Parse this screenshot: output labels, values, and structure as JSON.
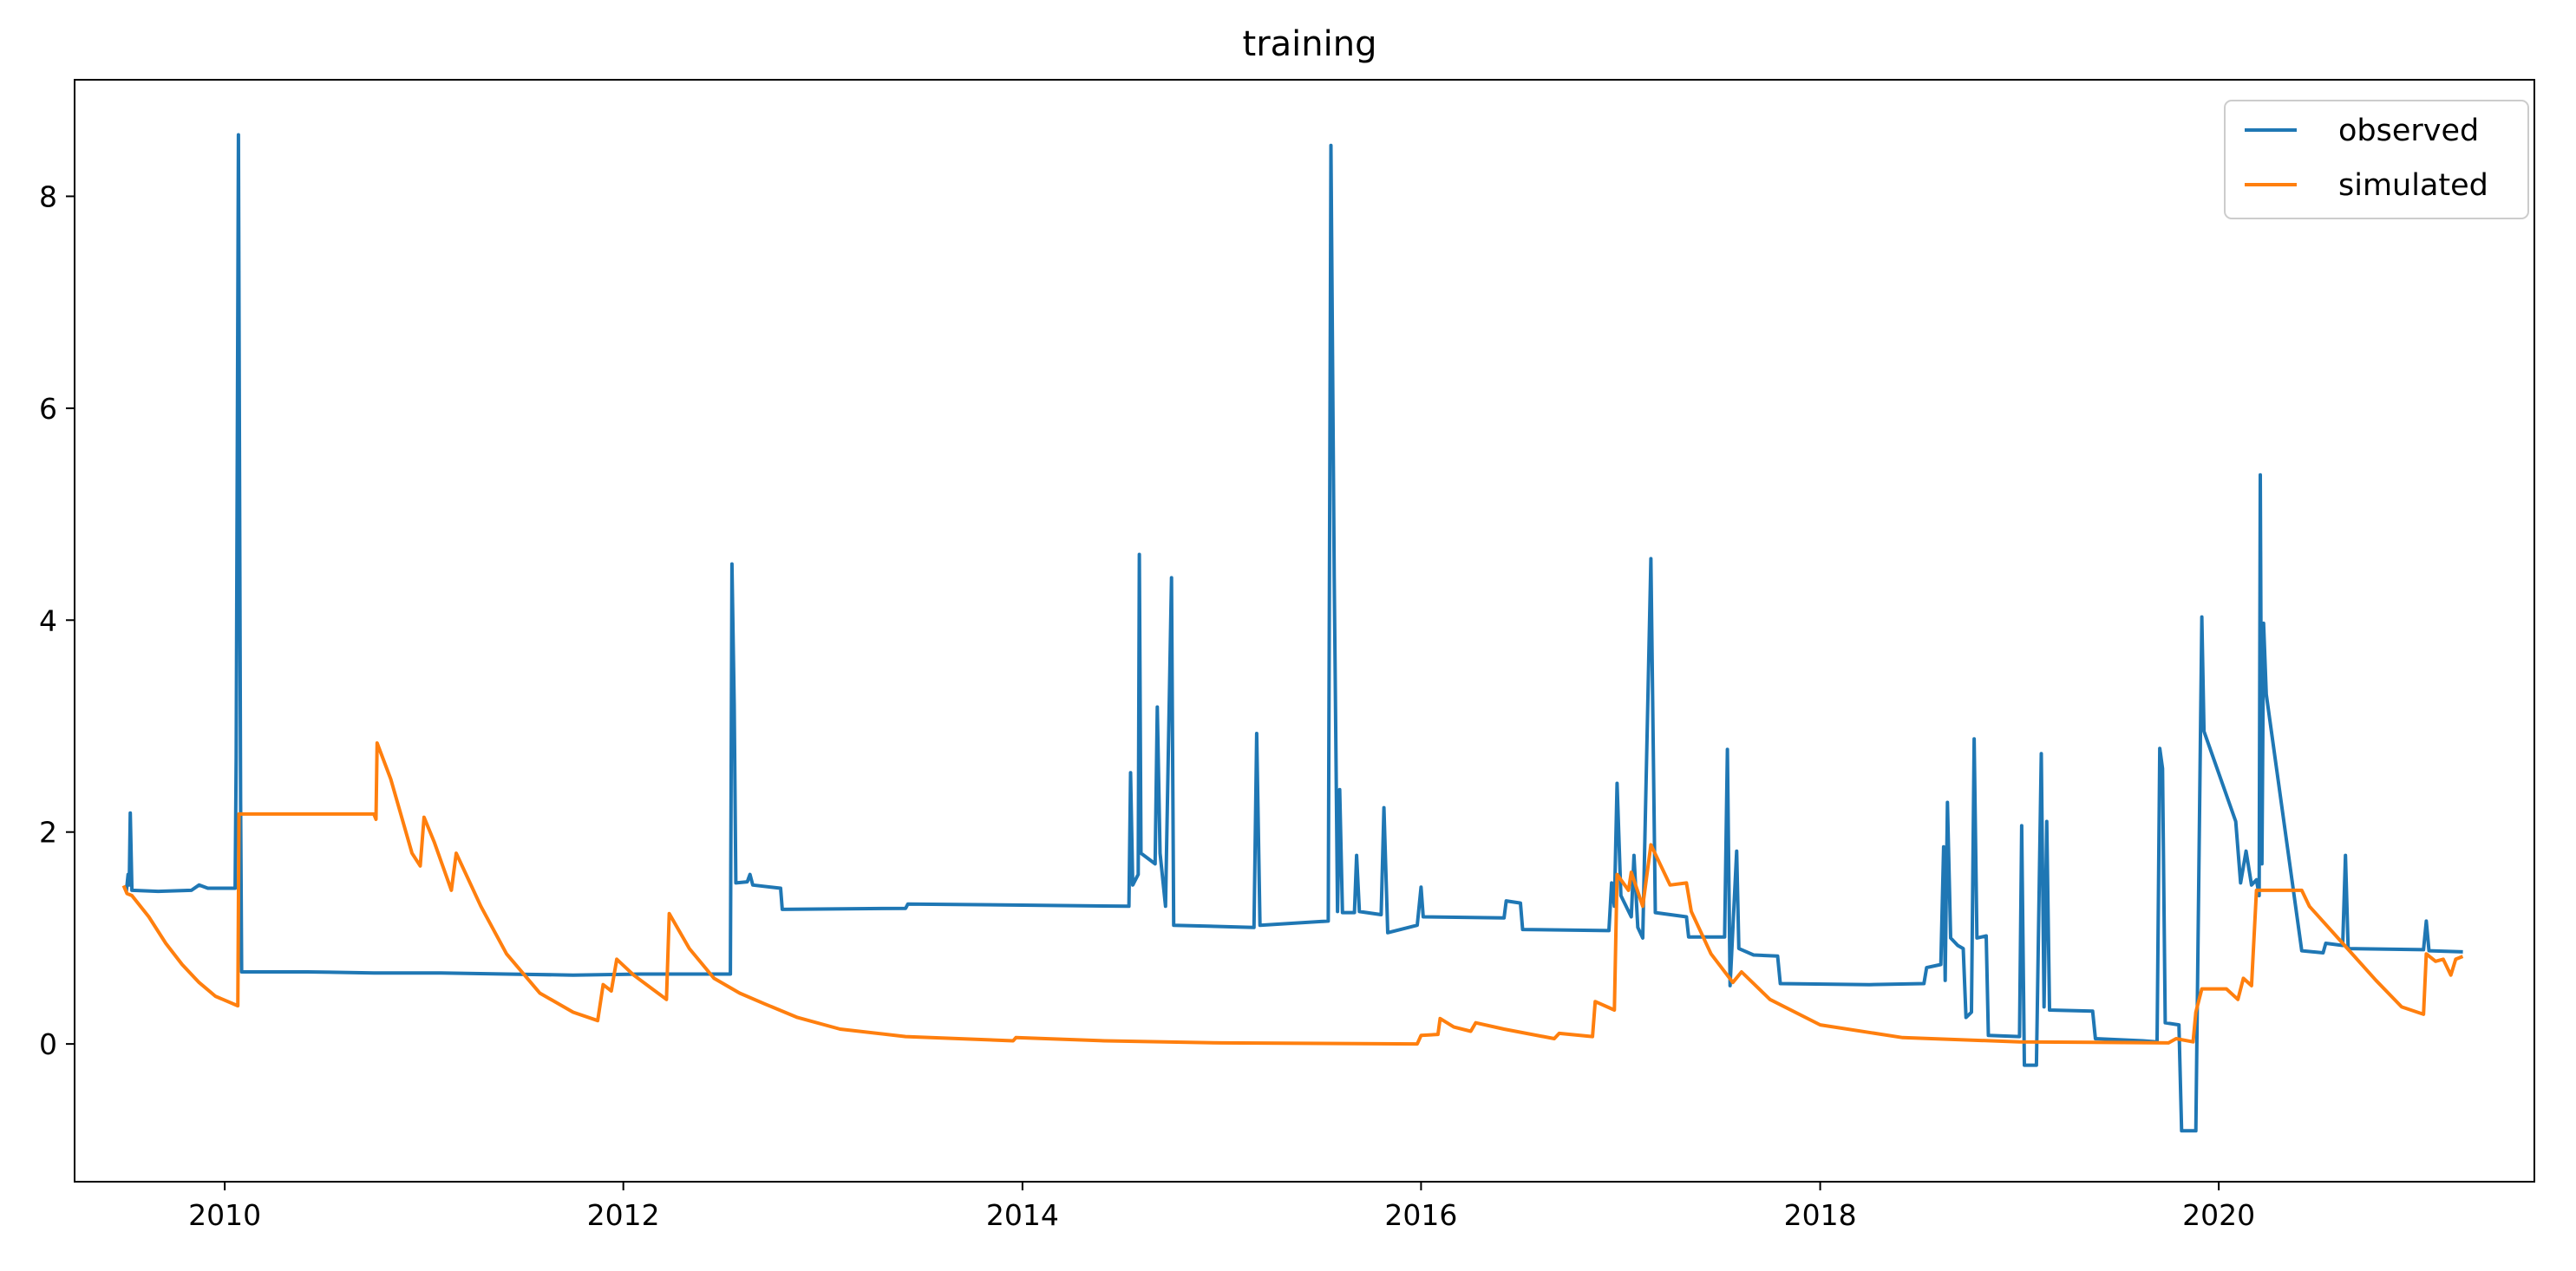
{
  "chart_data": {
    "type": "line",
    "title": "training",
    "xlabel": "",
    "ylabel": "",
    "x_axis": "date",
    "xlim": [
      "2009-04-01",
      "2021-08-01"
    ],
    "ylim": [
      -1.3,
      9.1
    ],
    "x_ticks": [
      {
        "value": "2010-01-01",
        "label": "2010"
      },
      {
        "value": "2012-01-01",
        "label": "2012"
      },
      {
        "value": "2014-01-01",
        "label": "2014"
      },
      {
        "value": "2016-01-01",
        "label": "2016"
      },
      {
        "value": "2018-01-01",
        "label": "2018"
      },
      {
        "value": "2020-01-01",
        "label": "2020"
      }
    ],
    "y_ticks": [
      {
        "value": 0,
        "label": "0"
      },
      {
        "value": 2,
        "label": "2"
      },
      {
        "value": 4,
        "label": "4"
      },
      {
        "value": 6,
        "label": "6"
      },
      {
        "value": 8,
        "label": "8"
      }
    ],
    "grid": false,
    "legend_position": "top-right",
    "series": [
      {
        "name": "observed",
        "color": "#1f77b4",
        "points": [
          [
            "2009-07-05",
            1.45
          ],
          [
            "2009-07-08",
            1.6
          ],
          [
            "2009-07-10",
            1.5
          ],
          [
            "2009-07-12",
            2.18
          ],
          [
            "2009-07-15",
            1.45
          ],
          [
            "2009-09-01",
            1.44
          ],
          [
            "2009-11-01",
            1.45
          ],
          [
            "2009-11-15",
            1.5
          ],
          [
            "2009-12-01",
            1.47
          ],
          [
            "2010-01-20",
            1.47
          ],
          [
            "2010-01-22",
            2.7
          ],
          [
            "2010-01-26",
            8.58
          ],
          [
            "2010-01-30",
            2.3
          ],
          [
            "2010-02-01",
            0.68
          ],
          [
            "2010-06-01",
            0.68
          ],
          [
            "2010-10-01",
            0.67
          ],
          [
            "2011-02-01",
            0.67
          ],
          [
            "2011-06-01",
            0.66
          ],
          [
            "2011-10-01",
            0.65
          ],
          [
            "2012-02-01",
            0.66
          ],
          [
            "2012-07-15",
            0.66
          ],
          [
            "2012-07-18",
            4.53
          ],
          [
            "2012-07-22",
            3.2
          ],
          [
            "2012-07-25",
            1.52
          ],
          [
            "2012-08-15",
            1.53
          ],
          [
            "2012-08-20",
            1.6
          ],
          [
            "2012-08-25",
            1.5
          ],
          [
            "2012-10-15",
            1.47
          ],
          [
            "2012-10-18",
            1.27
          ],
          [
            "2013-06-01",
            1.28
          ],
          [
            "2013-06-05",
            1.32
          ],
          [
            "2014-01-01",
            1.31
          ],
          [
            "2014-07-15",
            1.3
          ],
          [
            "2014-07-18",
            2.56
          ],
          [
            "2014-07-22",
            1.5
          ],
          [
            "2014-08-01",
            1.6
          ],
          [
            "2014-08-03",
            4.62
          ],
          [
            "2014-08-06",
            1.8
          ],
          [
            "2014-09-01",
            1.7
          ],
          [
            "2014-09-05",
            3.18
          ],
          [
            "2014-09-10",
            1.8
          ],
          [
            "2014-09-20",
            1.3
          ],
          [
            "2014-10-01",
            4.4
          ],
          [
            "2014-10-05",
            1.12
          ],
          [
            "2015-03-01",
            1.1
          ],
          [
            "2015-03-06",
            2.93
          ],
          [
            "2015-03-12",
            1.12
          ],
          [
            "2015-07-15",
            1.16
          ],
          [
            "2015-07-20",
            8.48
          ],
          [
            "2015-07-26",
            4.4
          ],
          [
            "2015-08-01",
            1.25
          ],
          [
            "2015-08-05",
            2.4
          ],
          [
            "2015-08-10",
            1.24
          ],
          [
            "2015-09-01",
            1.24
          ],
          [
            "2015-09-05",
            1.78
          ],
          [
            "2015-09-10",
            1.25
          ],
          [
            "2015-10-20",
            1.22
          ],
          [
            "2015-10-25",
            2.23
          ],
          [
            "2015-11-01",
            1.05
          ],
          [
            "2015-12-25",
            1.12
          ],
          [
            "2016-01-01",
            1.48
          ],
          [
            "2016-01-05",
            1.2
          ],
          [
            "2016-06-01",
            1.19
          ],
          [
            "2016-06-05",
            1.35
          ],
          [
            "2016-07-01",
            1.33
          ],
          [
            "2016-07-05",
            1.08
          ],
          [
            "2016-12-10",
            1.07
          ],
          [
            "2016-12-15",
            1.52
          ],
          [
            "2016-12-20",
            1.3
          ],
          [
            "2016-12-25",
            2.46
          ],
          [
            "2017-01-01",
            1.4
          ],
          [
            "2017-01-20",
            1.2
          ],
          [
            "2017-01-25",
            1.78
          ],
          [
            "2017-02-01",
            1.1
          ],
          [
            "2017-02-10",
            1.0
          ],
          [
            "2017-02-25",
            4.58
          ],
          [
            "2017-03-05",
            1.24
          ],
          [
            "2017-05-01",
            1.2
          ],
          [
            "2017-05-05",
            1.01
          ],
          [
            "2017-07-10",
            1.01
          ],
          [
            "2017-07-15",
            2.78
          ],
          [
            "2017-07-20",
            0.55
          ],
          [
            "2017-08-01",
            1.82
          ],
          [
            "2017-08-05",
            0.9
          ],
          [
            "2017-09-01",
            0.84
          ],
          [
            "2017-10-15",
            0.83
          ],
          [
            "2017-10-20",
            0.57
          ],
          [
            "2018-04-01",
            0.56
          ],
          [
            "2018-07-10",
            0.57
          ],
          [
            "2018-07-15",
            0.72
          ],
          [
            "2018-08-10",
            0.75
          ],
          [
            "2018-08-15",
            1.86
          ],
          [
            "2018-08-18",
            0.6
          ],
          [
            "2018-08-22",
            2.28
          ],
          [
            "2018-08-28",
            1.0
          ],
          [
            "2018-09-10",
            0.93
          ],
          [
            "2018-09-20",
            0.9
          ],
          [
            "2018-09-25",
            0.25
          ],
          [
            "2018-10-05",
            0.3
          ],
          [
            "2018-10-10",
            2.88
          ],
          [
            "2018-10-15",
            1.0
          ],
          [
            "2018-11-01",
            1.02
          ],
          [
            "2018-11-05",
            0.08
          ],
          [
            "2019-01-01",
            0.07
          ],
          [
            "2019-01-05",
            2.06
          ],
          [
            "2019-01-10",
            -0.2
          ],
          [
            "2019-02-01",
            -0.2
          ],
          [
            "2019-02-10",
            2.74
          ],
          [
            "2019-02-15",
            0.35
          ],
          [
            "2019-02-20",
            2.1
          ],
          [
            "2019-02-25",
            0.32
          ],
          [
            "2019-05-15",
            0.31
          ],
          [
            "2019-05-20",
            0.05
          ],
          [
            "2019-08-15",
            0.03
          ],
          [
            "2019-09-10",
            0.02
          ],
          [
            "2019-09-15",
            2.79
          ],
          [
            "2019-09-20",
            2.6
          ],
          [
            "2019-09-25",
            0.2
          ],
          [
            "2019-10-20",
            0.18
          ],
          [
            "2019-10-25",
            -0.82
          ],
          [
            "2019-11-20",
            -0.82
          ],
          [
            "2019-12-01",
            4.03
          ],
          [
            "2019-12-05",
            2.95
          ],
          [
            "2020-02-01",
            2.1
          ],
          [
            "2020-02-10",
            1.52
          ],
          [
            "2020-02-20",
            1.82
          ],
          [
            "2020-03-01",
            1.5
          ],
          [
            "2020-03-10",
            1.55
          ],
          [
            "2020-03-15",
            1.4
          ],
          [
            "2020-03-17",
            5.37
          ],
          [
            "2020-03-20",
            1.7
          ],
          [
            "2020-03-23",
            3.97
          ],
          [
            "2020-03-28",
            3.3
          ],
          [
            "2020-06-01",
            0.88
          ],
          [
            "2020-07-10",
            0.86
          ],
          [
            "2020-07-15",
            0.95
          ],
          [
            "2020-08-15",
            0.93
          ],
          [
            "2020-08-20",
            1.78
          ],
          [
            "2020-08-25",
            0.9
          ],
          [
            "2021-01-10",
            0.89
          ],
          [
            "2021-01-15",
            1.16
          ],
          [
            "2021-01-20",
            0.88
          ],
          [
            "2021-03-20",
            0.87
          ]
        ]
      },
      {
        "name": "simulated",
        "color": "#ff7f0e",
        "points": [
          [
            "2009-07-01",
            1.48
          ],
          [
            "2009-07-06",
            1.42
          ],
          [
            "2009-07-15",
            1.4
          ],
          [
            "2009-08-15",
            1.2
          ],
          [
            "2009-09-15",
            0.95
          ],
          [
            "2009-10-15",
            0.75
          ],
          [
            "2009-11-15",
            0.58
          ],
          [
            "2009-12-15",
            0.45
          ],
          [
            "2010-01-25",
            0.36
          ],
          [
            "2010-01-27",
            2.17
          ],
          [
            "2010-10-01",
            2.17
          ],
          [
            "2010-10-05",
            2.12
          ],
          [
            "2010-10-07",
            2.84
          ],
          [
            "2010-11-01",
            2.5
          ],
          [
            "2010-12-10",
            1.8
          ],
          [
            "2010-12-25",
            1.68
          ],
          [
            "2011-01-01",
            2.14
          ],
          [
            "2011-01-20",
            1.9
          ],
          [
            "2011-02-20",
            1.45
          ],
          [
            "2011-03-01",
            1.8
          ],
          [
            "2011-04-15",
            1.3
          ],
          [
            "2011-06-01",
            0.85
          ],
          [
            "2011-08-01",
            0.48
          ],
          [
            "2011-10-01",
            0.3
          ],
          [
            "2011-11-15",
            0.22
          ],
          [
            "2011-11-25",
            0.56
          ],
          [
            "2011-12-10",
            0.5
          ],
          [
            "2011-12-20",
            0.8
          ],
          [
            "2012-01-20",
            0.65
          ],
          [
            "2012-03-20",
            0.42
          ],
          [
            "2012-03-25",
            1.23
          ],
          [
            "2012-05-01",
            0.9
          ],
          [
            "2012-06-15",
            0.62
          ],
          [
            "2012-08-01",
            0.48
          ],
          [
            "2012-09-15",
            0.38
          ],
          [
            "2012-11-15",
            0.25
          ],
          [
            "2013-02-01",
            0.14
          ],
          [
            "2013-06-01",
            0.07
          ],
          [
            "2013-12-15",
            0.03
          ],
          [
            "2013-12-20",
            0.06
          ],
          [
            "2014-06-01",
            0.03
          ],
          [
            "2015-01-01",
            0.01
          ],
          [
            "2015-12-25",
            0.0
          ],
          [
            "2016-01-01",
            0.08
          ],
          [
            "2016-02-01",
            0.09
          ],
          [
            "2016-02-05",
            0.24
          ],
          [
            "2016-03-01",
            0.16
          ],
          [
            "2016-04-01",
            0.12
          ],
          [
            "2016-04-10",
            0.2
          ],
          [
            "2016-06-01",
            0.14
          ],
          [
            "2016-09-01",
            0.05
          ],
          [
            "2016-09-10",
            0.1
          ],
          [
            "2016-11-10",
            0.07
          ],
          [
            "2016-11-15",
            0.4
          ],
          [
            "2016-12-20",
            0.32
          ],
          [
            "2016-12-25",
            1.6
          ],
          [
            "2017-01-15",
            1.45
          ],
          [
            "2017-01-20",
            1.62
          ],
          [
            "2017-02-10",
            1.3
          ],
          [
            "2017-02-25",
            1.88
          ],
          [
            "2017-04-01",
            1.5
          ],
          [
            "2017-05-01",
            1.52
          ],
          [
            "2017-05-10",
            1.25
          ],
          [
            "2017-06-15",
            0.85
          ],
          [
            "2017-07-25",
            0.58
          ],
          [
            "2017-08-10",
            0.68
          ],
          [
            "2017-10-01",
            0.42
          ],
          [
            "2018-01-01",
            0.18
          ],
          [
            "2018-06-01",
            0.06
          ],
          [
            "2019-01-01",
            0.02
          ],
          [
            "2019-10-01",
            0.01
          ],
          [
            "2019-10-15",
            0.05
          ],
          [
            "2019-11-15",
            0.02
          ],
          [
            "2019-11-20",
            0.3
          ],
          [
            "2019-12-01",
            0.52
          ],
          [
            "2020-01-15",
            0.52
          ],
          [
            "2020-02-05",
            0.42
          ],
          [
            "2020-02-15",
            0.62
          ],
          [
            "2020-03-01",
            0.55
          ],
          [
            "2020-03-10",
            1.45
          ],
          [
            "2020-06-01",
            1.45
          ],
          [
            "2020-06-15",
            1.3
          ],
          [
            "2020-08-15",
            0.95
          ],
          [
            "2020-10-15",
            0.6
          ],
          [
            "2020-12-01",
            0.35
          ],
          [
            "2021-01-10",
            0.28
          ],
          [
            "2021-01-15",
            0.85
          ],
          [
            "2021-02-01",
            0.78
          ],
          [
            "2021-02-15",
            0.8
          ],
          [
            "2021-03-01",
            0.65
          ],
          [
            "2021-03-10",
            0.8
          ],
          [
            "2021-03-20",
            0.82
          ]
        ]
      }
    ]
  }
}
